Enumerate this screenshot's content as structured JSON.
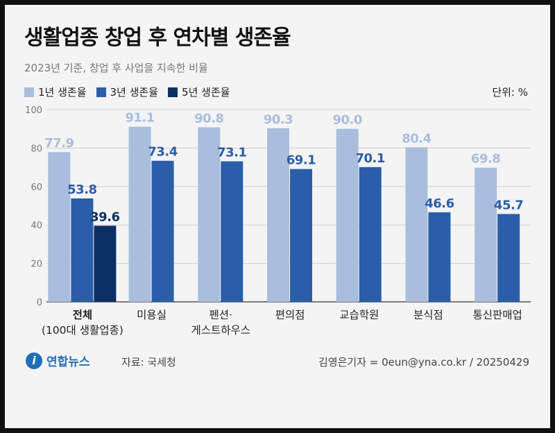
{
  "title": "생활업종 창업 후 연차별 생존율",
  "subtitle": "2023년 기준, 창업 후 사업을 지속한 비율",
  "unit": "단위: %",
  "source": "자료: 국세청",
  "credit": "김영은기자 = 0eun@yna.co.kr / 20250429",
  "logo": {
    "text": "연합뉴스",
    "icon": "yonhap-logo-icon"
  },
  "colors": {
    "y1": "#a9bedc",
    "y3": "#2a5ea8",
    "y5": "#0c2f63"
  },
  "chart_data": {
    "type": "bar",
    "title": "생활업종 창업 후 연차별 생존율",
    "ylim": [
      0,
      100
    ],
    "yticks": [
      0,
      20,
      40,
      60,
      80,
      100
    ],
    "grid": true,
    "legend": "top-left",
    "categories": [
      [
        "전체",
        "(100대 생활업종)"
      ],
      [
        "미용실"
      ],
      [
        "펜션·",
        "게스트하우스"
      ],
      [
        "편의점"
      ],
      [
        "교습학원"
      ],
      [
        "분식점"
      ],
      [
        "통신판매업"
      ]
    ],
    "series": [
      {
        "name": "1년 생존율",
        "values": [
          77.9,
          91.1,
          90.8,
          90.3,
          90.0,
          80.4,
          69.8
        ],
        "labels": [
          "77.9",
          "91.1",
          "90.8",
          "90.3",
          "90.0",
          "80.4",
          "69.8"
        ]
      },
      {
        "name": "3년 생존율",
        "values": [
          53.8,
          73.4,
          73.1,
          69.1,
          70.1,
          46.6,
          45.7
        ],
        "labels": [
          "53.8",
          "73.4",
          "73.1",
          "69.1",
          "70.1",
          "46.6",
          "45.7"
        ]
      },
      {
        "name": "5년 생존율",
        "values": [
          39.6,
          null,
          null,
          null,
          null,
          null,
          null
        ],
        "labels": [
          "39.6",
          "",
          "",
          "",
          "",
          "",
          ""
        ]
      }
    ]
  }
}
